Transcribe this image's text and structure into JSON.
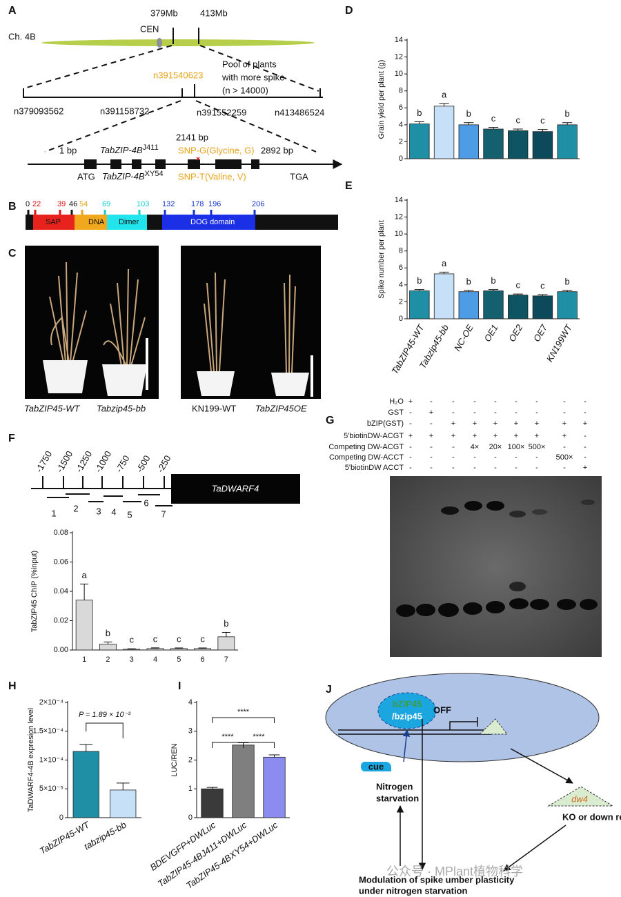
{
  "panels": {
    "A": {
      "label": "A",
      "chromosome": "Ch. 4B",
      "centromere": "CEN",
      "interval_left": "379Mb",
      "interval_right": "413Mb",
      "marker": "n391540623",
      "pool": [
        "Pool of plants",
        "with more spike",
        "(n > 14000)"
      ],
      "markers": [
        "n379093562",
        "n391158732",
        "n391552259",
        "n413486524"
      ],
      "snp_position": "2141 bp",
      "gene_start": "1 bp",
      "gene_end": "2892 bp",
      "allele_j411": {
        "gene": "TabZIP-4B",
        "allele": "J411"
      },
      "snp_j411": "SNP-G(Glycine, G)",
      "start_codon": "ATG",
      "allele_xy54": {
        "gene": "TabZIP-4B",
        "allele": "XY54"
      },
      "snp_xy54": "SNP-T(Valine, V)",
      "stop_codon": "TGA"
    },
    "B": {
      "label": "B",
      "positions": [
        0,
        22,
        39,
        46,
        54,
        69,
        103,
        132,
        178,
        196,
        206
      ],
      "domains": [
        "SAP",
        "DNA",
        "Dimer",
        "DOG domain"
      ]
    },
    "C": {
      "label": "C",
      "plants": [
        "TabZIP45-WT",
        "Tabzip45-bb",
        "KN199-WT",
        "TabZIP45OE"
      ]
    },
    "F": {
      "label": "F",
      "promoter_positions": [
        -1750,
        -1500,
        -1250,
        -1000,
        -750,
        -500,
        -250
      ],
      "gene": "TaDWARF4",
      "fragments": [
        "1",
        "2",
        "3",
        "4",
        "5",
        "6",
        "7"
      ]
    },
    "G": {
      "label": "G",
      "rows": [
        {
          "name": "H₂O",
          "lanes": [
            "+",
            "-",
            "-",
            "-",
            "-",
            "-",
            "-",
            "-",
            "-"
          ]
        },
        {
          "name": "GST",
          "lanes": [
            "-",
            "+",
            "-",
            "-",
            "-",
            "-",
            "-",
            "-",
            "-"
          ]
        },
        {
          "name": "bZIP(GST)",
          "lanes": [
            "-",
            "-",
            "+",
            "+",
            "+",
            "+",
            "+",
            "+",
            "+"
          ]
        },
        {
          "name": "5'biotinDW-ACGT",
          "lanes": [
            "+",
            "+",
            "+",
            "+",
            "+",
            "+",
            "+",
            "+",
            "-"
          ]
        },
        {
          "name": "Competing DW-ACGT",
          "lanes": [
            "-",
            "-",
            "-",
            "4×",
            "20×",
            "100×",
            "500×",
            "-",
            "-"
          ]
        },
        {
          "name": "Competing DW-ACCT",
          "lanes": [
            "-",
            "-",
            "-",
            "-",
            "-",
            "-",
            "-",
            "500×",
            "-"
          ]
        },
        {
          "name": "5'biotinDW ACCT",
          "lanes": [
            "-",
            "-",
            "-",
            "-",
            "-",
            "-",
            "-",
            "-",
            "+"
          ]
        }
      ]
    },
    "J": {
      "label": "J",
      "protein": [
        "bZIP45",
        "/bzip45"
      ],
      "state": "OFF",
      "cue": "cue",
      "stress": [
        "Nitrogen",
        "starvation"
      ],
      "target": "dw4",
      "effect": "KO or down regulation",
      "outcome": [
        "Modulation of spike umber plasticity",
        "under nitrogen starvation"
      ],
      "watermark": "公众号 · MPlant植物科学"
    }
  },
  "chart_data": [
    {
      "type": "bar",
      "panel": "D",
      "y_label": "Grain yield per plant (g)",
      "categories": [
        null,
        null,
        null,
        null,
        null,
        null,
        null
      ],
      "values": [
        4.1,
        6.2,
        4.0,
        3.5,
        3.3,
        3.2,
        4.0
      ],
      "errors": [
        0.25,
        0.3,
        0.25,
        0.2,
        0.2,
        0.25,
        0.25
      ],
      "annotations": [
        "b",
        "a",
        "b",
        "c",
        "c",
        "c",
        "b"
      ],
      "colors": [
        "#1f8fa6",
        "#c6e0f7",
        "#4e9be6",
        "#15606f",
        "#0f5462",
        "#0c4a5b",
        "#1f8fa6"
      ],
      "ylim": [
        0,
        14
      ],
      "yticks": [
        0,
        2,
        4,
        6,
        8,
        10,
        12,
        14
      ]
    },
    {
      "type": "bar",
      "panel": "E",
      "y_label": "Spike number per plant",
      "categories": [
        "TabZIP45-WT",
        "Tabzip45-bb",
        "NC-OE",
        "OE1",
        "OE2",
        "OE7",
        "KN199WT"
      ],
      "values": [
        3.3,
        5.3,
        3.2,
        3.3,
        2.8,
        2.7,
        3.2
      ],
      "errors": [
        0.15,
        0.2,
        0.15,
        0.15,
        0.12,
        0.15,
        0.15
      ],
      "annotations": [
        "b",
        "a",
        "b",
        "b",
        "c",
        "c",
        "b"
      ],
      "colors": [
        "#1f8fa6",
        "#c6e0f7",
        "#4e9be6",
        "#15606f",
        "#0f5462",
        "#0c4a5b",
        "#1f8fa6"
      ],
      "ylim": [
        0,
        14
      ],
      "yticks": [
        0,
        2,
        4,
        6,
        8,
        10,
        12,
        14
      ]
    },
    {
      "type": "bar",
      "panel": "",
      "y_label": "TabZIP45 ChIP (%input)",
      "categories": [
        "1",
        "2",
        "3",
        "4",
        "5",
        "6",
        "7"
      ],
      "values": [
        0.034,
        0.004,
        0.0005,
        0.001,
        0.001,
        0.001,
        0.009
      ],
      "errors": [
        0.011,
        0.0015,
        0.0003,
        0.0005,
        0.0004,
        0.0004,
        0.003
      ],
      "annotations": [
        "a",
        "b",
        "c",
        "c",
        "c",
        "c",
        "b"
      ],
      "colors": [
        "#d9d9d9",
        "#d9d9d9",
        "#d9d9d9",
        "#d9d9d9",
        "#d9d9d9",
        "#d9d9d9",
        "#d9d9d9"
      ],
      "ylim": [
        0,
        0.08
      ],
      "yticks": [
        {
          "value": 0,
          "label": "0.00"
        },
        {
          "value": 0.02,
          "label": "0.02"
        },
        {
          "value": 0.04,
          "label": "0.04"
        },
        {
          "value": 0.06,
          "label": "0.06"
        },
        {
          "value": 0.08,
          "label": "0.08"
        }
      ]
    },
    {
      "type": "bar",
      "panel": "H",
      "y_label": "TaDWARF4-4B expresion level",
      "categories": [
        "TabZIP45-WT",
        "tabzip45-bb"
      ],
      "values": [
        0.000115,
        4.8e-05
      ],
      "errors": [
        1.2e-05,
        1.2e-05
      ],
      "annotation": "P = 1.89 × 10⁻³",
      "colors": [
        "#1f8fa6",
        "#c6e0f7"
      ],
      "ylim": [
        0,
        0.0002
      ],
      "yticks": [
        0,
        {
          "value": 5e-05,
          "label": "5×10⁻⁵"
        },
        {
          "value": 0.0001,
          "label": "1×10⁻⁴"
        },
        {
          "value": 0.00015,
          "label": "1.5×10⁻⁴"
        },
        {
          "value": 0.0002,
          "label": "2×10⁻⁴"
        }
      ]
    },
    {
      "type": "bar",
      "panel": "I",
      "y_label": "LUC/REN",
      "categories": [
        "BDEVGFP+DWLuc",
        "TabZIP45-4BJ411+DWLuc",
        "TabZIP45-4BXY54+DWLuc"
      ],
      "values": [
        1.0,
        2.52,
        2.1
      ],
      "errors": [
        0.05,
        0.08,
        0.08
      ],
      "significance": [
        "****",
        "****",
        "****"
      ],
      "colors": [
        "#3a3a3a",
        "#7f7f7f",
        "#8c8cf0"
      ],
      "ylim": [
        0,
        4
      ],
      "yticks": [
        0,
        1,
        2,
        3,
        4
      ]
    }
  ]
}
